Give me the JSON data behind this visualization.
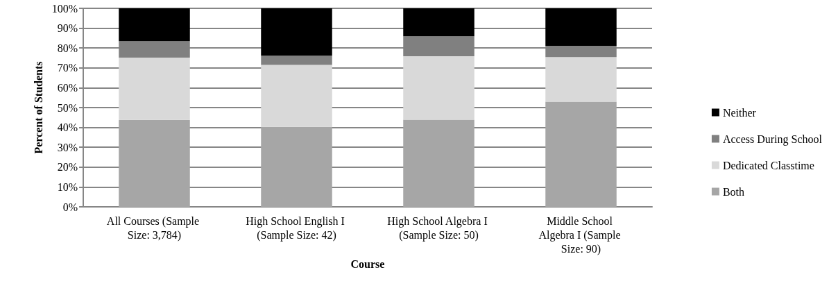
{
  "chart_data": {
    "type": "bar",
    "stacked": true,
    "xlabel": "Course",
    "ylabel": "Percent of Students",
    "categories": [
      "All Courses (Sample Size: 3,784)",
      "High School English I (Sample Size: 42)",
      "High School Algebra I (Sample Size: 50)",
      "Middle School Algebra I (Sample Size: 90)"
    ],
    "series": [
      {
        "name": "Both",
        "color": "#a6a6a6",
        "values": [
          43.8,
          40.3,
          43.9,
          53.0
        ]
      },
      {
        "name": "Dedicated Classtime",
        "color": "#d9d9d9",
        "values": [
          31.4,
          31.2,
          32.0,
          22.4
        ]
      },
      {
        "name": "Access During School",
        "color": "#808080",
        "values": [
          8.3,
          4.6,
          10.0,
          5.7
        ]
      },
      {
        "name": "Neither",
        "color": "#000000",
        "values": [
          16.5,
          23.9,
          14.1,
          18.9
        ]
      }
    ],
    "ylim": [
      0,
      100
    ],
    "yticks": [
      {
        "value": 0,
        "label": "0%"
      },
      {
        "value": 10,
        "label": "10%"
      },
      {
        "value": 20,
        "label": "20%"
      },
      {
        "value": 30,
        "label": "30%"
      },
      {
        "value": 40,
        "label": "40%"
      },
      {
        "value": 50,
        "label": "50%"
      },
      {
        "value": 60,
        "label": "60%"
      },
      {
        "value": 70,
        "label": "70%"
      },
      {
        "value": 80,
        "label": "80%"
      },
      {
        "value": 90,
        "label": "90%"
      },
      {
        "value": 100,
        "label": "100%"
      }
    ],
    "grid": "y",
    "legend": "right"
  }
}
